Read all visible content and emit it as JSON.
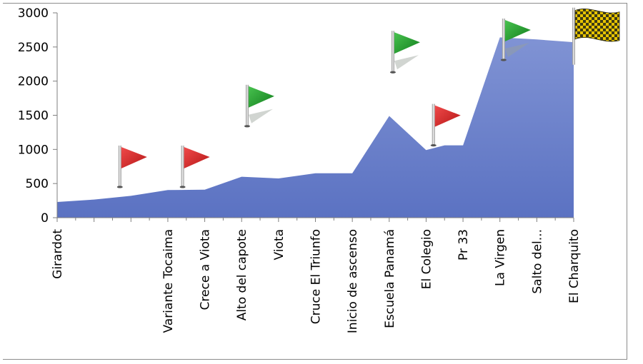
{
  "chart_data": {
    "type": "area",
    "title": "",
    "xlabel": "",
    "ylabel": "",
    "ylim": [
      0,
      3000
    ],
    "yticks": [
      0,
      500,
      1000,
      1500,
      2000,
      2500,
      3000
    ],
    "grid": false,
    "legend": "none",
    "area_color": "#7b8fd1",
    "area_color_bottom": "#5e75c4",
    "x_tick_labels": [
      "Girardot",
      "",
      "",
      "Variante Tocaima",
      "Crece a Viota",
      "Alto del capote",
      "Viota",
      "Cruce El Triunfo",
      "Inicio de ascenso",
      "Escuela Panamá",
      "El Colegio",
      "Pr 33",
      "La Virgen",
      "Salto del...",
      "El Charquito"
    ],
    "points": [
      {
        "x": 0,
        "y": 230
      },
      {
        "x": 1,
        "y": 265
      },
      {
        "x": 2,
        "y": 320
      },
      {
        "x": 3,
        "y": 405
      },
      {
        "x": 4,
        "y": 410
      },
      {
        "x": 5,
        "y": 600
      },
      {
        "x": 6,
        "y": 575
      },
      {
        "x": 7,
        "y": 650
      },
      {
        "x": 8,
        "y": 650
      },
      {
        "x": 9,
        "y": 1490
      },
      {
        "x": 10,
        "y": 990
      },
      {
        "x": 10.5,
        "y": 1060
      },
      {
        "x": 11,
        "y": 1060
      },
      {
        "x": 12,
        "y": 2640
      },
      {
        "x": 13,
        "y": 2610
      },
      {
        "x": 14,
        "y": 2570
      }
    ],
    "flags": [
      {
        "kind": "red",
        "x": 1.7,
        "y": 450
      },
      {
        "kind": "red",
        "x": 3.4,
        "y": 450
      },
      {
        "kind": "green",
        "x": 5.15,
        "y": 1340
      },
      {
        "kind": "green",
        "x": 9.1,
        "y": 2130
      },
      {
        "kind": "red",
        "x": 10.2,
        "y": 1060
      },
      {
        "kind": "green",
        "x": 12.1,
        "y": 2310
      },
      {
        "kind": "checkered",
        "x": 14.0,
        "y": 2240
      }
    ],
    "colors": {
      "red_flag": "#d52b2b",
      "green_flag": "#1f9a2c",
      "checker_dark": "#3d3a16",
      "checker_light": "#e7c400"
    }
  }
}
